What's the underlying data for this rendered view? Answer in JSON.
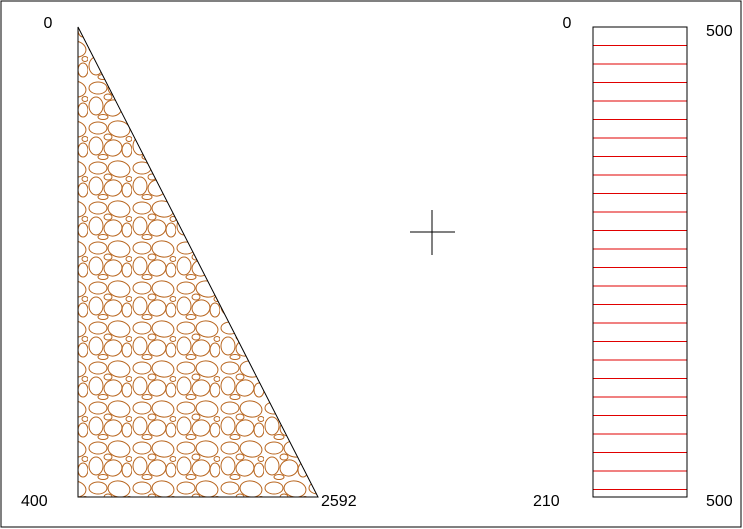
{
  "left_diagram": {
    "top_label": 0,
    "bottom_label": 400,
    "base_label": 2592
  },
  "right_diagram": {
    "top_left_label": 0,
    "top_right_label": 500,
    "bottom_left_label": 210,
    "bottom_right_label": 500
  }
}
